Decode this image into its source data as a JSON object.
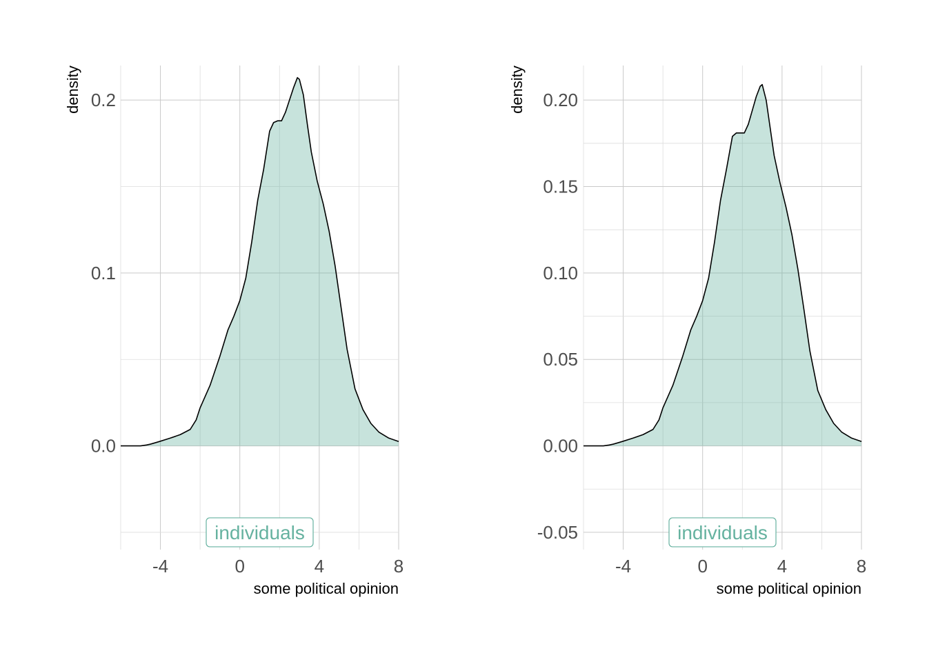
{
  "chart_data": [
    {
      "type": "area",
      "xlabel": "some political opinion",
      "ylabel": "density",
      "xlim": [
        -6,
        8
      ],
      "ylim": [
        -0.06,
        0.22
      ],
      "x_ticks": [
        -4,
        0,
        4,
        8
      ],
      "x_tick_labels": [
        "-4",
        "0",
        "4",
        "8"
      ],
      "y_ticks": [
        0.0,
        0.1,
        0.2
      ],
      "y_tick_labels": [
        "0.0",
        "0.1",
        "0.2"
      ],
      "grid": true,
      "fill_color": "#66b2a0",
      "fill_opacity": 0.37,
      "line_color": "#000000",
      "series": [
        {
          "x": [
            -6.0,
            -5.5,
            -5.0,
            -4.7,
            -4.5,
            -4.2,
            -4.0,
            -3.5,
            -3.0,
            -2.5,
            -2.2,
            -2.0,
            -1.5,
            -1.0,
            -0.6,
            -0.3,
            0.0,
            0.3,
            0.6,
            0.9,
            1.2,
            1.5,
            1.7,
            1.9,
            2.1,
            2.3,
            2.5,
            2.7,
            2.9,
            3.0,
            3.2,
            3.4,
            3.6,
            3.9,
            4.2,
            4.5,
            4.8,
            5.1,
            5.4,
            5.8,
            6.2,
            6.6,
            7.0,
            7.5,
            8.0
          ],
          "y": [
            0.0,
            0.0,
            0.0,
            0.0005,
            0.001,
            0.002,
            0.0027,
            0.0045,
            0.0065,
            0.0095,
            0.015,
            0.022,
            0.035,
            0.052,
            0.067,
            0.075,
            0.084,
            0.097,
            0.118,
            0.142,
            0.16,
            0.182,
            0.187,
            0.188,
            0.188,
            0.193,
            0.2,
            0.207,
            0.213,
            0.212,
            0.203,
            0.186,
            0.17,
            0.153,
            0.14,
            0.124,
            0.104,
            0.08,
            0.056,
            0.033,
            0.021,
            0.013,
            0.008,
            0.0045,
            0.0025
          ]
        }
      ],
      "annotation": {
        "text": "individuals",
        "x": 1.0,
        "y": -0.05,
        "color": "#66b2a0"
      }
    },
    {
      "type": "area",
      "xlabel": "some political opinion",
      "ylabel": "density",
      "xlim": [
        -6,
        8
      ],
      "ylim": [
        -0.06,
        0.22
      ],
      "x_ticks": [
        -4,
        0,
        4,
        8
      ],
      "x_tick_labels": [
        "-4",
        "0",
        "4",
        "8"
      ],
      "y_ticks": [
        -0.05,
        0.0,
        0.05,
        0.1,
        0.15,
        0.2
      ],
      "y_tick_labels": [
        "-0.05",
        "0.00",
        "0.05",
        "0.10",
        "0.15",
        "0.20"
      ],
      "grid": true,
      "fill_color": "#66b2a0",
      "fill_opacity": 0.37,
      "line_color": "#000000",
      "series": [
        {
          "x": [
            -6.0,
            -5.5,
            -5.0,
            -4.7,
            -4.5,
            -4.2,
            -4.0,
            -3.5,
            -3.0,
            -2.5,
            -2.2,
            -2.0,
            -1.5,
            -1.0,
            -0.6,
            -0.3,
            0.0,
            0.3,
            0.6,
            0.9,
            1.2,
            1.5,
            1.7,
            1.9,
            2.1,
            2.3,
            2.5,
            2.7,
            2.9,
            3.0,
            3.2,
            3.4,
            3.6,
            3.9,
            4.2,
            4.5,
            4.8,
            5.1,
            5.4,
            5.8,
            6.2,
            6.6,
            7.0,
            7.5,
            8.0
          ],
          "y": [
            0.0,
            0.0,
            0.0,
            0.0005,
            0.001,
            0.002,
            0.0027,
            0.0045,
            0.0065,
            0.0095,
            0.015,
            0.022,
            0.035,
            0.052,
            0.067,
            0.075,
            0.084,
            0.097,
            0.118,
            0.142,
            0.16,
            0.179,
            0.181,
            0.181,
            0.181,
            0.186,
            0.194,
            0.202,
            0.208,
            0.209,
            0.2,
            0.184,
            0.168,
            0.152,
            0.138,
            0.122,
            0.102,
            0.079,
            0.055,
            0.032,
            0.021,
            0.013,
            0.008,
            0.0045,
            0.0025
          ]
        }
      ],
      "annotation": {
        "text": "individuals",
        "x": 1.0,
        "y": -0.05,
        "color": "#66b2a0"
      }
    }
  ]
}
